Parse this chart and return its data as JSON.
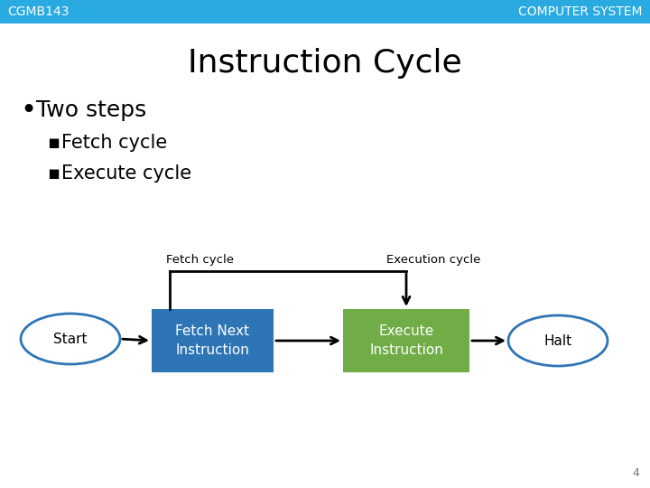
{
  "title": "Instruction Cycle",
  "header_left": "CGMB143",
  "header_right": "COMPUTER SYSTEM",
  "header_bg": "#29ABE2",
  "header_text_color": "#FFFFFF",
  "bg_color": "#FFFFFF",
  "bullet_main": "Two steps",
  "bullet_sub1": "Fetch cycle",
  "bullet_sub2": "Execute cycle",
  "diagram": {
    "start_label": "Start",
    "halt_label": "Halt",
    "fetch_box_label": "Fetch Next\nInstruction",
    "execute_box_label": "Execute\nInstruction",
    "fetch_cycle_label": "Fetch cycle",
    "execution_cycle_label": "Execution cycle",
    "ellipse_color_outline": "#2E75B6",
    "ellipse_fill": "#FFFFFF",
    "fetch_box_color": "#2E75B6",
    "execute_box_color": "#70AD47",
    "box_text_color": "#FFFFFF",
    "arrow_color": "#000000"
  },
  "page_number": "4",
  "title_fontsize": 26,
  "header_fontsize": 10,
  "bullet_main_fontsize": 18,
  "bullet_sub_fontsize": 15,
  "diagram_fontsize": 10
}
